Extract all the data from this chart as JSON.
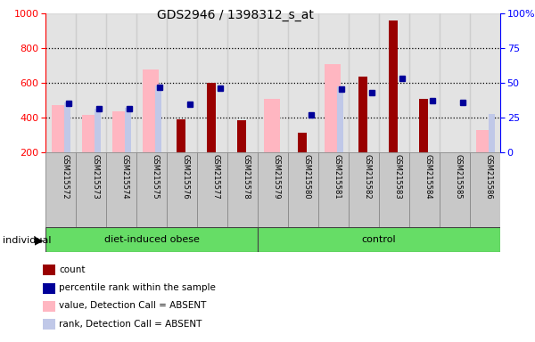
{
  "title": "GDS2946 / 1398312_s_at",
  "samples": [
    "GSM215572",
    "GSM215573",
    "GSM215574",
    "GSM215575",
    "GSM215576",
    "GSM215577",
    "GSM215578",
    "GSM215579",
    "GSM215580",
    "GSM215581",
    "GSM215582",
    "GSM215583",
    "GSM215584",
    "GSM215585",
    "GSM215586"
  ],
  "count": [
    null,
    null,
    null,
    null,
    390,
    600,
    385,
    null,
    310,
    null,
    635,
    960,
    510,
    null,
    null
  ],
  "percentile_rank": [
    480,
    450,
    450,
    575,
    475,
    570,
    null,
    null,
    415,
    565,
    545,
    625,
    500,
    485,
    null
  ],
  "value_absent": [
    470,
    415,
    435,
    680,
    null,
    null,
    null,
    510,
    null,
    710,
    null,
    null,
    null,
    null,
    330
  ],
  "rank_absent": [
    490,
    450,
    455,
    585,
    null,
    null,
    null,
    null,
    null,
    580,
    null,
    null,
    null,
    null,
    420
  ],
  "ylim_left": [
    200,
    1000
  ],
  "ylim_right": [
    0,
    100
  ],
  "yticks_left": [
    200,
    400,
    600,
    800,
    1000
  ],
  "yticks_right": [
    0,
    25,
    50,
    75,
    100
  ],
  "n_diet": 7,
  "n_control": 8,
  "color_count": "#990000",
  "color_prank": "#000099",
  "color_value_absent": "#FFB6C1",
  "color_rank_absent": "#C0C8E8",
  "color_group_green": "#66DD66",
  "color_col_bg": "#C8C8C8",
  "legend_items": [
    "count",
    "percentile rank within the sample",
    "value, Detection Call = ABSENT",
    "rank, Detection Call = ABSENT"
  ]
}
